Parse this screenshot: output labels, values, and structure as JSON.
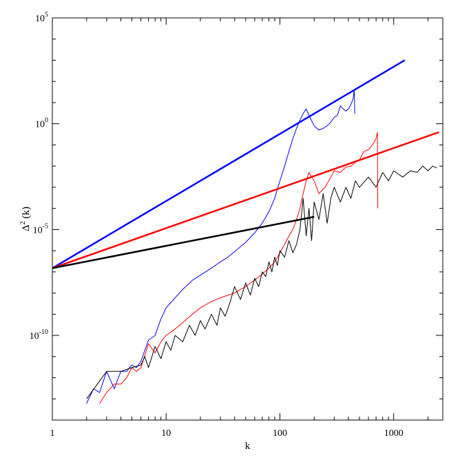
{
  "chart_data": {
    "type": "line",
    "title": "",
    "xlabel": "k",
    "ylabel": "Δ² (k)",
    "ylabel_parts": {
      "delta": "Δ",
      "power": "2",
      "arg": " (k)"
    },
    "x_scale": "log",
    "y_scale": "log",
    "xlim": [
      1,
      2700
    ],
    "ylim": [
      1e-14,
      100000.0
    ],
    "x_ticks": [
      {
        "value": 1,
        "label": "1"
      },
      {
        "value": 10,
        "label": "10"
      },
      {
        "value": 100,
        "label": "100"
      },
      {
        "value": 1000,
        "label": "1000"
      }
    ],
    "y_ticks": [
      {
        "value": 1e-10,
        "mantissa": "10",
        "exponent": "-10"
      },
      {
        "value": 1e-05,
        "mantissa": "10",
        "exponent": "-5"
      },
      {
        "value": 1,
        "mantissa": "10",
        "exponent": "0"
      },
      {
        "value": 100000.0,
        "mantissa": "10",
        "exponent": "5"
      }
    ],
    "grid": false,
    "legend": "none",
    "reference_lines": [
      {
        "color": "#0000ff",
        "x": [
          1,
          1250
        ],
        "y": [
          1.5e-07,
          1000
        ]
      },
      {
        "color": "#ff0000",
        "x": [
          1,
          2500
        ],
        "y": [
          1.5e-07,
          0.4
        ]
      },
      {
        "color": "#000000",
        "x": [
          1,
          200
        ],
        "y": [
          1.5e-07,
          4e-05
        ]
      }
    ],
    "series": [
      {
        "color": "#0000ff",
        "x": [
          2,
          2.3,
          2.6,
          3,
          3.5,
          4,
          4.5,
          5,
          5.5,
          6,
          7,
          8,
          9,
          10,
          12,
          14,
          17,
          20,
          25,
          30,
          35,
          40,
          50,
          60,
          70,
          80,
          90,
          100,
          110,
          120,
          130,
          140,
          150,
          160,
          170,
          180,
          200,
          220,
          240,
          260,
          280,
          300,
          320,
          340,
          360,
          380,
          400,
          420,
          440,
          450,
          455
        ],
        "y": [
          6e-14,
          3e-13,
          2e-13,
          2e-12,
          3e-13,
          2e-12,
          2e-12,
          4e-12,
          3e-12,
          6e-12,
          6e-11,
          1e-10,
          6e-10,
          2e-09,
          6e-09,
          1.5e-08,
          4e-08,
          7e-08,
          1.5e-07,
          3e-07,
          5e-07,
          9e-07,
          2.5e-06,
          7e-06,
          2e-05,
          7e-05,
          0.0003,
          0.002,
          0.01,
          0.05,
          0.2,
          0.6,
          1.5,
          3,
          5,
          2.5,
          0.8,
          0.5,
          0.6,
          0.8,
          1.2,
          2,
          2.5,
          7,
          5,
          4,
          5,
          8,
          15,
          40,
          3
        ]
      },
      {
        "color": "#ff0000",
        "x": [
          2.6,
          3,
          3.5,
          4,
          4.5,
          5,
          5.5,
          6,
          7,
          8,
          9,
          10,
          12,
          14,
          17,
          20,
          25,
          30,
          35,
          40,
          45,
          50,
          55,
          60,
          70,
          80,
          90,
          100,
          110,
          120,
          130,
          140,
          150,
          160,
          170,
          180,
          200,
          220,
          250,
          280,
          300,
          340,
          380,
          420,
          460,
          500,
          550,
          600,
          650,
          700,
          720,
          725
        ],
        "y": [
          6e-14,
          2e-13,
          5e-13,
          5e-13,
          1e-12,
          3e-12,
          2e-12,
          3e-12,
          4e-11,
          1.5e-11,
          5e-11,
          1e-10,
          2e-10,
          4e-10,
          1e-09,
          2e-09,
          4e-09,
          6e-09,
          8e-09,
          1e-08,
          1.5e-08,
          2e-08,
          3e-08,
          4e-08,
          8e-08,
          1.5e-07,
          3e-07,
          8e-07,
          2e-06,
          5e-06,
          1e-05,
          3e-05,
          0.0001,
          0.0005,
          0.002,
          0.005,
          0.002,
          0.0005,
          0.001,
          0.003,
          0.006,
          0.005,
          0.009,
          0.01,
          0.015,
          0.02,
          0.05,
          0.06,
          0.1,
          0.2,
          0.4,
          0.0001
        ]
      },
      {
        "color": "#000000",
        "x": [
          2,
          3,
          4,
          5,
          6,
          6.5,
          7,
          8,
          9,
          10,
          11,
          12,
          14,
          16,
          18,
          20,
          22,
          25,
          28,
          30,
          33,
          36,
          40,
          45,
          50,
          55,
          60,
          65,
          70,
          75,
          80,
          85,
          90,
          95,
          100,
          110,
          120,
          130,
          140,
          150,
          160,
          170,
          180,
          190,
          200,
          220,
          240,
          260,
          280,
          300,
          340,
          380,
          420,
          460,
          500,
          600,
          700,
          800,
          900,
          1000,
          1200,
          1400,
          1600,
          1800,
          2000,
          2200,
          2400
        ],
        "y": [
          1e-13,
          2e-12,
          2e-12,
          3e-12,
          4e-12,
          1e-11,
          3e-12,
          3e-11,
          8e-12,
          5e-11,
          2e-11,
          1e-10,
          5e-11,
          3e-10,
          1e-10,
          5e-10,
          2e-10,
          1e-09,
          3e-10,
          2e-09,
          8e-10,
          3e-09,
          2e-08,
          5e-09,
          3e-08,
          8e-09,
          5e-08,
          2e-08,
          1e-07,
          6e-08,
          3e-07,
          1e-07,
          5e-07,
          2e-07,
          1e-06,
          5e-07,
          3e-06,
          8e-07,
          2e-06,
          1e-05,
          0.0003,
          5e-06,
          0.0001,
          3e-06,
          0.0002,
          3e-05,
          0.0005,
          2e-05,
          0.0003,
          0.001,
          0.0002,
          0.001,
          0.0003,
          0.002,
          0.001,
          0.003,
          0.001,
          0.005,
          0.002,
          0.006,
          0.003,
          0.006,
          0.005,
          0.01,
          0.006,
          0.01,
          0.008
        ]
      }
    ]
  }
}
